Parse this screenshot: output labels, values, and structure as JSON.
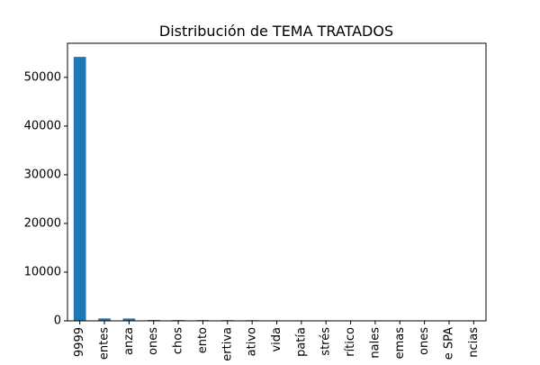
{
  "chart_data": {
    "type": "bar",
    "title": "Distribución de TEMA TRATADOS",
    "xlabel": "",
    "ylabel": "",
    "categories": [
      "9999",
      "entes",
      "anza",
      "ones",
      "chos",
      "ento",
      "ertiva",
      "ativo",
      "vida",
      "patía",
      "strés",
      "rítico",
      "nales",
      "emas",
      "ones",
      "e SPA",
      "ncias"
    ],
    "values": [
      54200,
      500,
      480,
      180,
      160,
      150,
      140,
      130,
      20,
      15,
      10,
      10,
      8,
      8,
      5,
      5,
      5
    ],
    "ylim": [
      0,
      57000
    ],
    "yticks": [
      0,
      10000,
      20000,
      30000,
      40000,
      50000
    ],
    "bar_color": "#1f77b4",
    "grid": false,
    "legend": "none"
  }
}
